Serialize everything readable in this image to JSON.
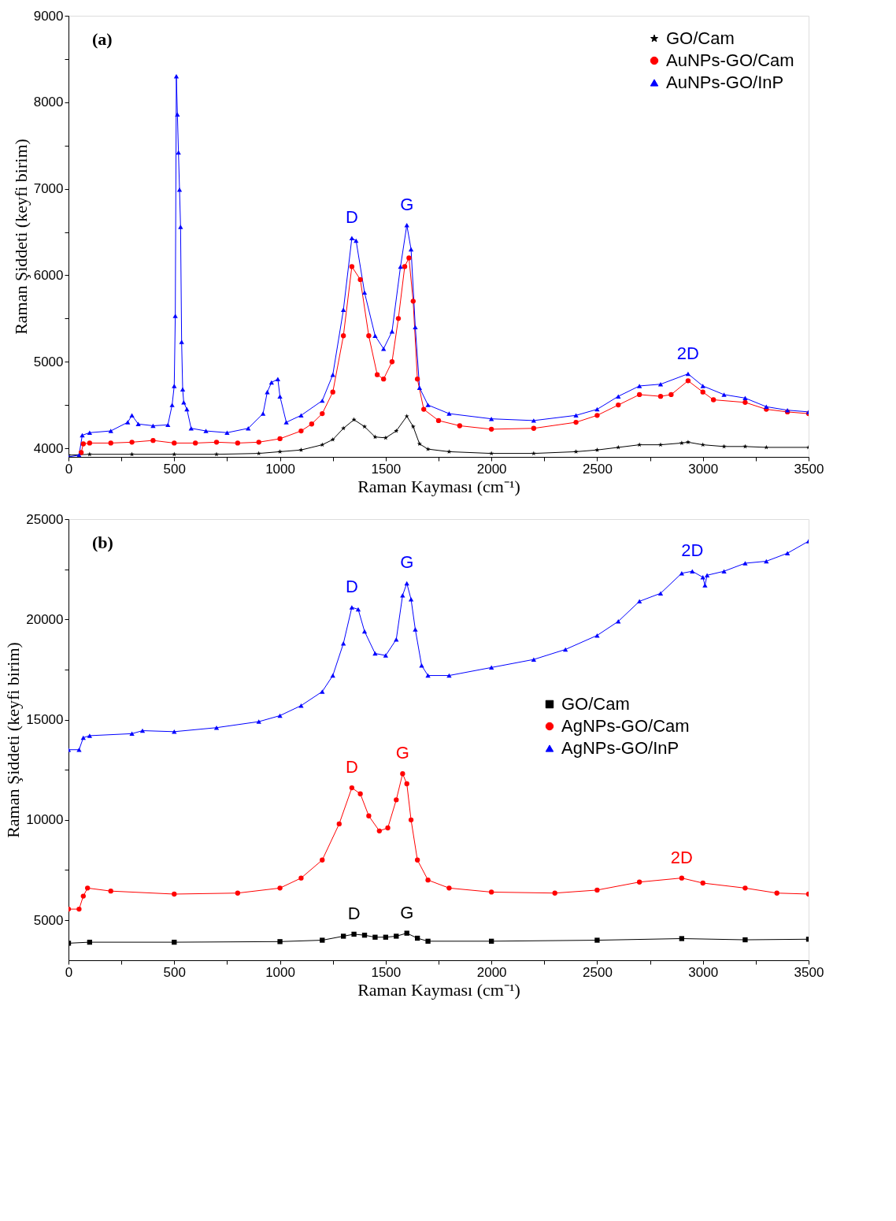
{
  "chart_data": [
    {
      "type": "line",
      "xlabel": "Raman Kayması (cm⁻¹)",
      "ylabel": "Raman Şiddeti (keyfi birim)",
      "xlim": [
        0,
        3500
      ],
      "ylim": [
        3900,
        9000
      ],
      "xticks": [
        0,
        {
          "value": 250,
          "label": null
        },
        500,
        {
          "value": 750,
          "label": null
        },
        1000,
        {
          "value": 1250,
          "label": null
        },
        1500,
        {
          "value": 1750,
          "label": null
        },
        2000,
        {
          "value": 2250,
          "label": null
        },
        2500,
        {
          "value": 2750,
          "label": null
        },
        3000,
        {
          "value": 3250,
          "label": null
        },
        3500
      ],
      "yticks": [
        4000,
        {
          "value": 4500,
          "label": null
        },
        5000,
        {
          "value": 5500,
          "label": null
        },
        6000,
        {
          "value": 6500,
          "label": null
        },
        7000,
        {
          "value": 7500,
          "label": null
        },
        8000,
        {
          "value": 8500,
          "label": null
        },
        9000
      ],
      "grid": false,
      "legend": "top right",
      "annotations": [
        "(a)",
        {
          "text": "D",
          "x": 1340,
          "y": 6430
        },
        {
          "text": "G",
          "x": 1600,
          "y": 6580
        },
        {
          "text": "2D",
          "x": 2930,
          "y": 4860
        }
      ],
      "series": [
        {
          "name": "GO/Cam",
          "color": "#000000",
          "marker": "star",
          "x": [
            0,
            100,
            300,
            500,
            700,
            900,
            1000,
            1100,
            1200,
            1250,
            1300,
            1350,
            1400,
            1450,
            1500,
            1550,
            1600,
            1630,
            1660,
            1700,
            1800,
            2000,
            2200,
            2400,
            2500,
            2600,
            2700,
            2800,
            2900,
            2930,
            3000,
            3100,
            3200,
            3300,
            3500
          ],
          "values": [
            3920,
            3930,
            3930,
            3930,
            3930,
            3940,
            3960,
            3980,
            4040,
            4100,
            4230,
            4330,
            4250,
            4130,
            4120,
            4200,
            4370,
            4250,
            4050,
            3990,
            3960,
            3940,
            3940,
            3960,
            3980,
            4010,
            4040,
            4040,
            4060,
            4070,
            4040,
            4020,
            4020,
            4010,
            4010
          ]
        },
        {
          "name": "AuNPs-GO/Cam",
          "color": "#ff0000",
          "marker": "circle",
          "x": [
            60,
            70,
            100,
            200,
            300,
            400,
            500,
            600,
            700,
            800,
            900,
            1000,
            1100,
            1150,
            1200,
            1250,
            1300,
            1340,
            1380,
            1420,
            1460,
            1490,
            1530,
            1560,
            1590,
            1610,
            1630,
            1650,
            1680,
            1750,
            1850,
            2000,
            2200,
            2400,
            2500,
            2600,
            2700,
            2800,
            2850,
            2930,
            3000,
            3050,
            3200,
            3300,
            3400,
            3500
          ],
          "values": [
            3950,
            4050,
            4060,
            4060,
            4070,
            4090,
            4060,
            4060,
            4070,
            4060,
            4070,
            4110,
            4200,
            4280,
            4400,
            4650,
            5300,
            6100,
            5950,
            5300,
            4850,
            4800,
            5000,
            5500,
            6100,
            6200,
            5700,
            4800,
            4450,
            4320,
            4260,
            4220,
            4230,
            4300,
            4380,
            4500,
            4620,
            4600,
            4620,
            4780,
            4650,
            4560,
            4530,
            4450,
            4420,
            4400
          ]
        },
        {
          "name": "AuNPs-GO/InP",
          "color": "#0000ff",
          "marker": "triangle",
          "x": [
            0,
            50,
            65,
            100,
            200,
            280,
            300,
            330,
            400,
            470,
            490,
            500,
            505,
            510,
            515,
            520,
            525,
            530,
            535,
            540,
            545,
            560,
            580,
            650,
            750,
            850,
            920,
            940,
            960,
            990,
            1000,
            1030,
            1100,
            1200,
            1250,
            1300,
            1340,
            1360,
            1400,
            1450,
            1490,
            1530,
            1570,
            1600,
            1620,
            1640,
            1660,
            1700,
            1800,
            2000,
            2200,
            2400,
            2500,
            2600,
            2700,
            2800,
            2930,
            3000,
            3100,
            3200,
            3300,
            3400,
            3500
          ],
          "values": [
            3900,
            3920,
            4150,
            4180,
            4200,
            4300,
            4380,
            4280,
            4260,
            4270,
            4500,
            4720,
            5530,
            8300,
            7860,
            7420,
            6990,
            6560,
            5230,
            4680,
            4530,
            4450,
            4230,
            4200,
            4180,
            4230,
            4400,
            4650,
            4760,
            4800,
            4600,
            4300,
            4380,
            4550,
            4850,
            5600,
            6430,
            6400,
            5800,
            5300,
            5150,
            5350,
            6100,
            6580,
            6300,
            5400,
            4700,
            4500,
            4400,
            4340,
            4320,
            4380,
            4450,
            4600,
            4720,
            4740,
            4860,
            4720,
            4620,
            4580,
            4480,
            4440,
            4420
          ]
        }
      ]
    },
    {
      "type": "line",
      "xlabel": "Raman Kayması (cm⁻¹)",
      "ylabel": "Raman Şiddeti (keyfi birim)",
      "xlim": [
        0,
        3500
      ],
      "ylim": [
        3000,
        25000
      ],
      "xticks": [
        0,
        {
          "value": 250,
          "label": null
        },
        500,
        {
          "value": 750,
          "label": null
        },
        1000,
        {
          "value": 1250,
          "label": null
        },
        1500,
        {
          "value": 1750,
          "label": null
        },
        2000,
        {
          "value": 2250,
          "label": null
        },
        2500,
        {
          "value": 2750,
          "label": null
        },
        3000,
        {
          "value": 3250,
          "label": null
        },
        3500
      ],
      "yticks": [
        5000,
        {
          "value": 7500,
          "label": null
        },
        10000,
        {
          "value": 12500,
          "label": null
        },
        15000,
        {
          "value": 17500,
          "label": null
        },
        20000,
        {
          "value": 22500,
          "label": null
        },
        25000
      ],
      "grid": false,
      "legend": "right",
      "annotations": [
        "(b)",
        {
          "text": "D",
          "x": 1340,
          "y": 20600
        },
        {
          "text": "G",
          "x": 1600,
          "y": 21800
        },
        {
          "text": "2D",
          "x": 2950,
          "y": 22400
        },
        {
          "text": "D",
          "x": 1340,
          "y": 11600
        },
        {
          "text": "G",
          "x": 1580,
          "y": 12300
        },
        {
          "text": "2D",
          "x": 2900,
          "y": 7100
        },
        {
          "text": "D",
          "x": 1350,
          "y": 4300
        },
        {
          "text": "G",
          "x": 1600,
          "y": 4350
        }
      ],
      "series": [
        {
          "name": "GO/Cam",
          "color": "#000000",
          "marker": "square",
          "x": [
            0,
            100,
            500,
            1000,
            1200,
            1300,
            1350,
            1400,
            1450,
            1500,
            1550,
            1600,
            1650,
            1700,
            2000,
            2500,
            2900,
            3200,
            3500
          ],
          "values": [
            3850,
            3900,
            3900,
            3930,
            4000,
            4200,
            4300,
            4250,
            4150,
            4150,
            4200,
            4350,
            4100,
            3950,
            3950,
            4000,
            4080,
            4020,
            4050
          ]
        },
        {
          "name": "AgNPs-GO/Cam",
          "color": "#ff0000",
          "marker": "circle",
          "x": [
            0,
            50,
            70,
            90,
            200,
            500,
            800,
            1000,
            1100,
            1200,
            1280,
            1340,
            1380,
            1420,
            1470,
            1510,
            1550,
            1580,
            1600,
            1620,
            1650,
            1700,
            1800,
            2000,
            2300,
            2500,
            2700,
            2900,
            3000,
            3200,
            3350,
            3500
          ],
          "values": [
            5550,
            5550,
            6200,
            6600,
            6450,
            6300,
            6350,
            6600,
            7100,
            8000,
            9800,
            11600,
            11300,
            10200,
            9450,
            9600,
            11000,
            12300,
            11800,
            10000,
            8000,
            7000,
            6600,
            6400,
            6350,
            6500,
            6900,
            7100,
            6850,
            6600,
            6350,
            6300
          ]
        },
        {
          "name": "AgNPs-GO/InP",
          "color": "#0000ff",
          "marker": "triangle",
          "x": [
            0,
            50,
            70,
            100,
            300,
            350,
            500,
            700,
            900,
            1000,
            1100,
            1200,
            1250,
            1300,
            1340,
            1370,
            1400,
            1450,
            1500,
            1550,
            1580,
            1600,
            1620,
            1640,
            1670,
            1700,
            1800,
            2000,
            2200,
            2350,
            2500,
            2600,
            2700,
            2800,
            2900,
            2950,
            3000,
            3010,
            3020,
            3100,
            3200,
            3300,
            3400,
            3500
          ],
          "values": [
            13500,
            13500,
            14100,
            14200,
            14300,
            14450,
            14400,
            14600,
            14900,
            15200,
            15700,
            16400,
            17200,
            18800,
            20600,
            20500,
            19400,
            18300,
            18200,
            19000,
            21200,
            21800,
            21000,
            19500,
            17700,
            17200,
            17200,
            17600,
            18000,
            18500,
            19200,
            19900,
            20900,
            21300,
            22300,
            22400,
            22100,
            21700,
            22200,
            22400,
            22800,
            22900,
            23300,
            23900
          ]
        }
      ]
    }
  ]
}
